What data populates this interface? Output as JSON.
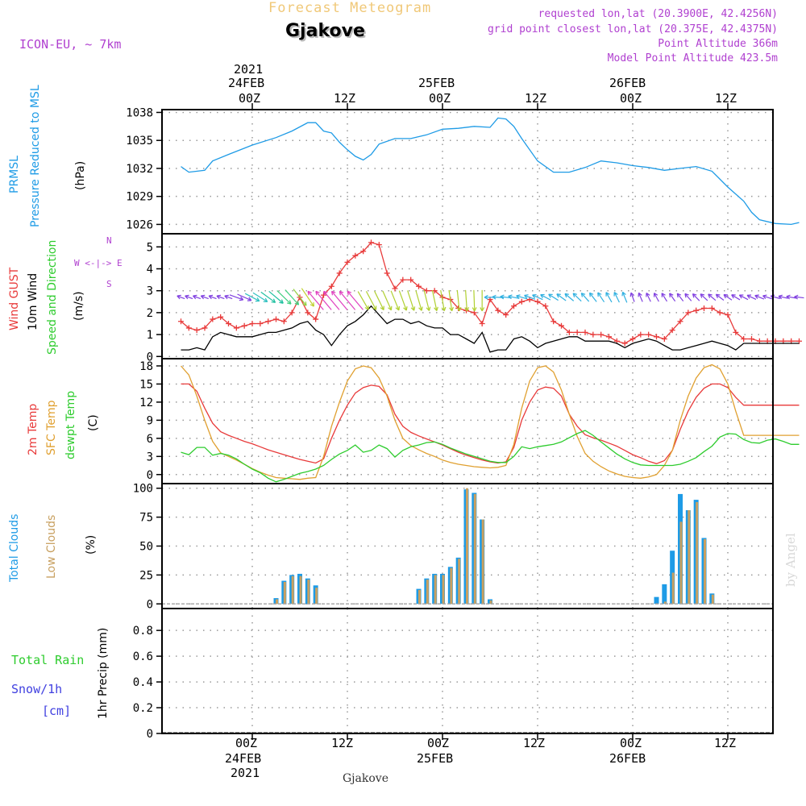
{
  "header": {
    "title": "Forecast Meteogram",
    "station": "Gjakove",
    "model": "ICON-EU, ~ 7km",
    "requested": "requested lon,lat (20.3900E, 42.4256N)",
    "grid_point": "grid point closest lon,lat (20.375E, 42.4375N)",
    "point_alt": "Point Altitude 366m",
    "model_alt": "Model Point Altitude 423.5m",
    "footer_station": "Gjakove",
    "watermark": "by Angel"
  },
  "time_axis": {
    "top_year": "2021",
    "bottom_year": "2021",
    "ticks": [
      {
        "top": "24FEB",
        "label": "00Z"
      },
      {
        "top": "",
        "label": "12Z"
      },
      {
        "top": "25FEB",
        "label": "00Z"
      },
      {
        "top": "",
        "label": "12Z"
      },
      {
        "top": "26FEB",
        "label": "00Z"
      },
      {
        "top": "",
        "label": "12Z"
      }
    ]
  },
  "panel_labels": {
    "pressure": [
      "PRMSL",
      "Pressure Reduced to MSL",
      "(hPa)"
    ],
    "wind": [
      "Wind GUST",
      "10m Wind",
      "Speed and Direction",
      "(m/s)"
    ],
    "compass": [
      "N",
      "S",
      "W <-|-> E"
    ],
    "temp": [
      "2m Temp",
      "SFC Temp",
      "dewpt Temp",
      "(C)"
    ],
    "clouds": [
      "Total Clouds",
      "Low Clouds",
      "(%)"
    ],
    "precip_left": [
      "Total  Rain",
      "Snow/1h",
      "[cm]"
    ],
    "precip_axis": "1hr Precip (mm)"
  },
  "colors": {
    "pressure": "#1e9be6",
    "gust": "#e83a3a",
    "wind": "#000000",
    "temp2m": "#e83a3a",
    "sfc": "#e0a030",
    "dewpt": "#2ecc2e",
    "total_clouds": "#1e9be6",
    "low_clouds": "#c8a060",
    "rain": "#2ecc2e",
    "snow": "#4040e0",
    "info": "#b040d0"
  },
  "chart_data": [
    {
      "type": "line",
      "panel": "pressure",
      "yticks": [
        1026,
        1029,
        1032,
        1035,
        1038
      ],
      "ylim": [
        1025,
        1038.3
      ],
      "x_hours": [
        -9,
        -8,
        -6,
        -5,
        -3,
        0,
        3,
        5,
        7,
        8,
        9,
        10,
        11,
        12,
        13,
        14,
        15,
        16,
        18,
        20,
        22,
        24,
        26,
        28,
        30,
        31,
        32,
        33,
        34,
        36,
        38,
        40,
        42,
        44,
        46,
        48,
        50,
        52,
        54,
        56,
        58,
        60,
        62,
        63,
        64,
        66,
        68,
        69
      ],
      "series": [
        {
          "name": "PRMSL",
          "values": [
            1032.2,
            1031.6,
            1031.8,
            1032.8,
            1033.5,
            1034.5,
            1035.3,
            1036.0,
            1036.9,
            1036.9,
            1036.0,
            1035.8,
            1034.8,
            1034.0,
            1033.3,
            1032.9,
            1033.5,
            1034.6,
            1035.2,
            1035.2,
            1035.6,
            1036.2,
            1036.3,
            1036.5,
            1036.4,
            1037.4,
            1037.3,
            1036.5,
            1035.2,
            1032.8,
            1031.6,
            1031.6,
            1032.1,
            1032.8,
            1032.6,
            1032.3,
            1032.1,
            1031.8,
            1032.0,
            1032.2,
            1031.7,
            1030.0,
            1028.5,
            1027.3,
            1026.5,
            1026.1,
            1026.0,
            1026.2
          ]
        }
      ]
    },
    {
      "type": "line",
      "panel": "wind",
      "yticks": [
        0,
        1,
        2,
        3,
        4,
        5
      ],
      "ylim": [
        -0.1,
        5.6
      ],
      "x_hours": [
        -9,
        -8,
        -7,
        -6,
        -5,
        -4,
        -3,
        -2,
        -1,
        0,
        1,
        2,
        3,
        4,
        5,
        6,
        7,
        8,
        9,
        10,
        11,
        12,
        13,
        14,
        15,
        16,
        17,
        18,
        19,
        20,
        21,
        22,
        23,
        24,
        25,
        26,
        27,
        28,
        29,
        30,
        31,
        32,
        33,
        34,
        35,
        36,
        37,
        38,
        39,
        40,
        41,
        42,
        43,
        44,
        45,
        46,
        47,
        48,
        49,
        50,
        51,
        52,
        53,
        54,
        55,
        56,
        57,
        58,
        59,
        60,
        61,
        62,
        63,
        64,
        65,
        66,
        67,
        68,
        69
      ],
      "series": [
        {
          "name": "Wind GUST",
          "values": [
            1.6,
            1.3,
            1.2,
            1.3,
            1.7,
            1.8,
            1.5,
            1.3,
            1.4,
            1.5,
            1.5,
            1.6,
            1.7,
            1.6,
            2.0,
            2.7,
            2.0,
            1.7,
            2.8,
            3.2,
            3.8,
            4.3,
            4.6,
            4.8,
            5.2,
            5.1,
            3.8,
            3.1,
            3.5,
            3.5,
            3.2,
            3.0,
            3.0,
            2.7,
            2.6,
            2.2,
            2.1,
            2.0,
            1.5,
            2.6,
            2.1,
            1.9,
            2.3,
            2.5,
            2.6,
            2.5,
            2.3,
            1.6,
            1.4,
            1.1,
            1.1,
            1.1,
            1.0,
            1.0,
            0.9,
            0.7,
            0.6,
            0.8,
            1.0,
            1.0,
            0.9,
            0.8,
            1.2,
            1.6,
            2.0,
            2.1,
            2.2,
            2.2,
            2.0,
            1.9,
            1.1,
            0.8,
            0.8,
            0.7,
            0.7,
            0.7,
            0.7,
            0.7,
            0.7
          ]
        },
        {
          "name": "10m Wind",
          "values": [
            0.3,
            0.3,
            0.4,
            0.3,
            0.9,
            1.1,
            1.0,
            0.9,
            0.9,
            0.9,
            1.0,
            1.1,
            1.1,
            1.2,
            1.3,
            1.5,
            1.6,
            1.2,
            1.0,
            0.5,
            1.0,
            1.4,
            1.6,
            1.9,
            2.3,
            1.9,
            1.5,
            1.7,
            1.7,
            1.5,
            1.6,
            1.4,
            1.3,
            1.3,
            1.0,
            1.0,
            0.8,
            0.6,
            1.1,
            0.2,
            0.3,
            0.3,
            0.8,
            0.9,
            0.7,
            0.4,
            0.6,
            0.7,
            0.8,
            0.9,
            0.9,
            0.7,
            0.7,
            0.7,
            0.7,
            0.6,
            0.4,
            0.6,
            0.7,
            0.8,
            0.7,
            0.5,
            0.3,
            0.3,
            0.4,
            0.5,
            0.6,
            0.7,
            0.6,
            0.5,
            0.3,
            0.6,
            0.6,
            0.6,
            0.6,
            0.6,
            0.6,
            0.6,
            0.6
          ]
        }
      ]
    },
    {
      "type": "line",
      "panel": "temperature",
      "yticks": [
        0,
        3,
        6,
        9,
        12,
        15,
        18
      ],
      "ylim": [
        -1.5,
        19.2
      ],
      "x_hours": [
        -9,
        -8,
        -7,
        -6,
        -5,
        -4,
        -3,
        -2,
        -1,
        0,
        1,
        2,
        3,
        4,
        5,
        6,
        7,
        8,
        9,
        10,
        11,
        12,
        13,
        14,
        15,
        16,
        17,
        18,
        19,
        20,
        21,
        22,
        23,
        24,
        25,
        26,
        27,
        28,
        29,
        30,
        31,
        32,
        33,
        34,
        35,
        36,
        37,
        38,
        39,
        40,
        41,
        42,
        43,
        44,
        45,
        46,
        47,
        48,
        49,
        50,
        51,
        52,
        53,
        54,
        55,
        56,
        57,
        58,
        59,
        60,
        61,
        62,
        63,
        64,
        65,
        66,
        67,
        68,
        69
      ],
      "series": [
        {
          "name": "2m Temp",
          "values": [
            15.0,
            15.0,
            13.8,
            11.0,
            8.5,
            7.1,
            6.5,
            6.0,
            5.5,
            5.1,
            4.6,
            4.1,
            3.7,
            3.3,
            2.9,
            2.5,
            2.2,
            1.9,
            2.6,
            6.0,
            9.0,
            11.5,
            13.5,
            14.4,
            14.8,
            14.6,
            13.2,
            10.0,
            8.0,
            7.0,
            6.4,
            5.9,
            5.4,
            4.9,
            4.3,
            3.7,
            3.2,
            2.8,
            2.4,
            2.1,
            1.9,
            2.1,
            4.5,
            9.0,
            12.0,
            14.0,
            14.5,
            14.3,
            13.0,
            10.0,
            8.0,
            6.6,
            6.1,
            5.7,
            5.2,
            4.7,
            4.0,
            3.3,
            2.8,
            2.2,
            1.8,
            2.3,
            4.0,
            7.5,
            10.5,
            12.8,
            14.3,
            15.0,
            15.0,
            14.4,
            12.8,
            11.5,
            11.5,
            11.5,
            11.5,
            11.5,
            11.5,
            11.5,
            11.5
          ]
        },
        {
          "name": "SFC Temp",
          "values": [
            18.0,
            16.5,
            13.0,
            9.0,
            5.5,
            3.6,
            3.0,
            2.4,
            1.7,
            1.0,
            0.4,
            -0.1,
            -0.5,
            -0.6,
            -0.7,
            -0.8,
            -0.6,
            -0.5,
            3.0,
            8.0,
            12.0,
            15.5,
            17.5,
            18.0,
            17.7,
            16.0,
            13.0,
            9.0,
            6.0,
            4.8,
            4.1,
            3.5,
            3.0,
            2.4,
            2.0,
            1.7,
            1.5,
            1.3,
            1.2,
            1.1,
            1.2,
            1.5,
            5.0,
            11.0,
            15.5,
            17.7,
            18.0,
            17.0,
            14.0,
            10.0,
            6.3,
            3.5,
            2.2,
            1.3,
            0.6,
            0.1,
            -0.3,
            -0.5,
            -0.6,
            -0.4,
            0.0,
            1.5,
            4.0,
            9.0,
            13.0,
            16.0,
            17.7,
            18.2,
            17.5,
            15.0,
            10.5,
            6.5,
            6.5,
            6.5,
            6.5,
            6.5,
            6.5,
            6.5,
            6.5
          ]
        },
        {
          "name": "dewpt Temp",
          "values": [
            3.7,
            3.3,
            4.5,
            4.5,
            3.2,
            3.5,
            3.2,
            2.6,
            1.7,
            0.9,
            0.3,
            -0.6,
            -1.2,
            -0.8,
            -0.3,
            0.2,
            0.5,
            0.9,
            1.5,
            2.5,
            3.4,
            4.0,
            4.9,
            3.7,
            4.0,
            4.9,
            4.3,
            2.9,
            4.0,
            4.6,
            4.9,
            5.3,
            5.4,
            5.0,
            4.4,
            3.9,
            3.4,
            3.0,
            2.6,
            2.2,
            2.0,
            2.0,
            3.0,
            4.6,
            4.3,
            4.6,
            4.8,
            5.0,
            5.4,
            6.1,
            6.8,
            7.3,
            6.5,
            5.4,
            4.4,
            3.4,
            2.6,
            2.0,
            1.6,
            1.5,
            1.5,
            1.5,
            1.5,
            1.7,
            2.2,
            2.8,
            3.8,
            4.7,
            6.2,
            6.8,
            6.7,
            5.8,
            5.3,
            5.2,
            5.7,
            5.9,
            5.5,
            5.0,
            5.0
          ]
        }
      ]
    },
    {
      "type": "bar",
      "panel": "clouds",
      "yticks": [
        0,
        25,
        50,
        75,
        100
      ],
      "ylim": [
        -4,
        104
      ],
      "x_hours": [
        3,
        4,
        5,
        6,
        7,
        8,
        21,
        22,
        23,
        24,
        25,
        26,
        27,
        28,
        29,
        30,
        31,
        32,
        33,
        34,
        35,
        36,
        37,
        38,
        51,
        52,
        53,
        54,
        55,
        56,
        57,
        58
      ],
      "series": [
        {
          "name": "Total Clouds",
          "values": [
            5,
            20,
            25,
            26,
            22,
            16,
            13,
            22,
            26,
            26,
            32,
            40,
            99,
            96,
            73,
            4,
            0,
            0,
            0,
            0,
            0,
            0,
            0,
            0,
            6,
            17,
            46,
            95,
            81,
            90,
            57,
            9
          ]
        },
        {
          "name": "Low Clouds",
          "values": [
            4,
            19,
            24,
            24,
            21,
            14,
            12,
            21,
            25,
            25,
            31,
            39,
            100,
            95,
            73,
            3,
            0,
            0,
            0,
            0,
            0,
            0,
            0,
            0,
            0,
            2,
            27,
            71,
            81,
            88,
            56,
            8
          ]
        }
      ]
    },
    {
      "type": "bar",
      "panel": "precipitation",
      "yticks": [
        0,
        0.2,
        0.4,
        0.6,
        0.8
      ],
      "ylim": [
        0,
        0.97
      ],
      "series": [
        {
          "name": "Total Rain",
          "values": []
        },
        {
          "name": "Snow/1h",
          "values": []
        }
      ]
    }
  ]
}
